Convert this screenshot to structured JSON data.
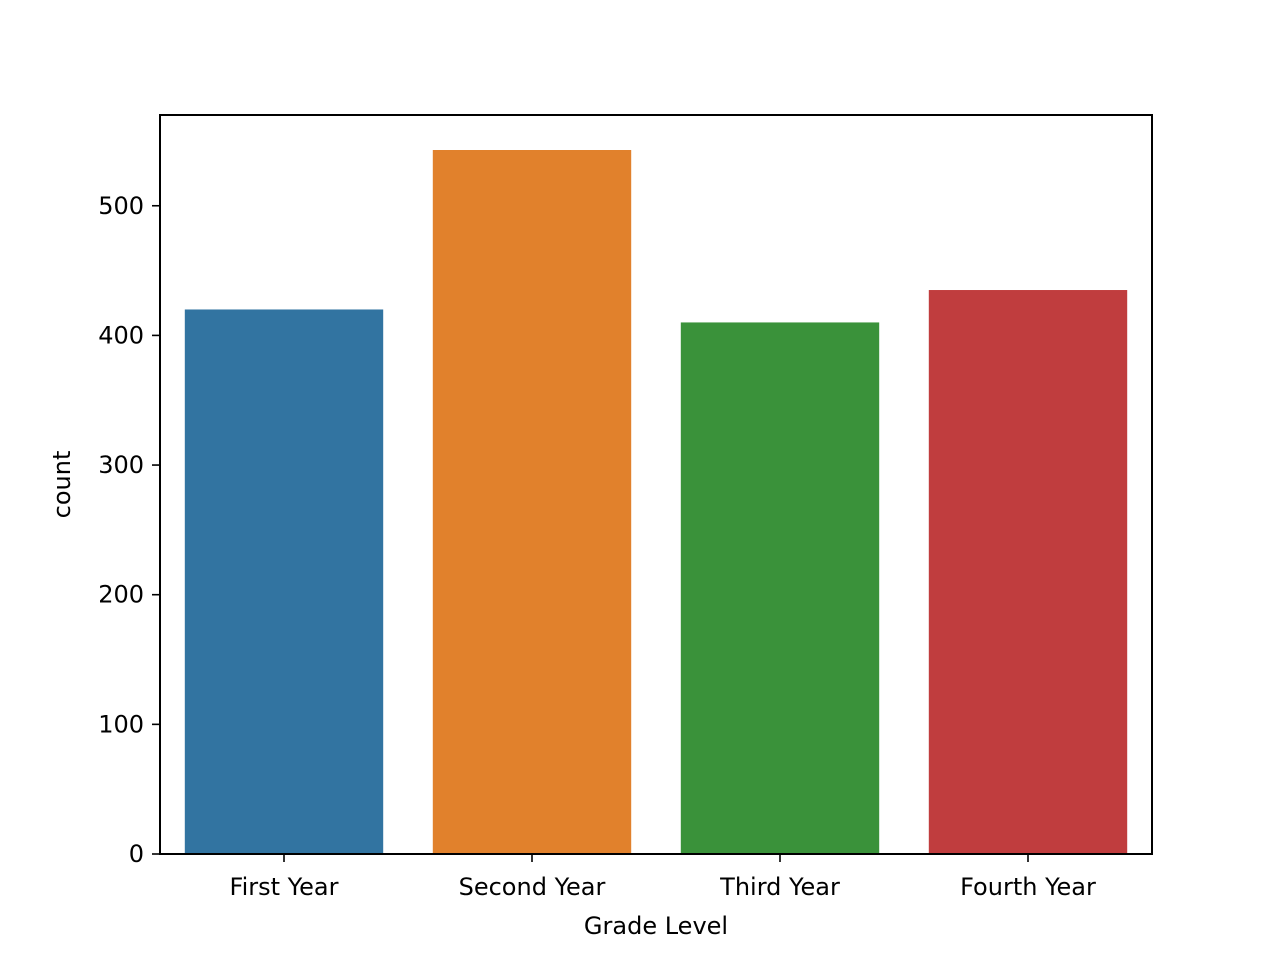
{
  "chart_data": {
    "type": "bar",
    "title": "",
    "xlabel": "Grade Level",
    "ylabel": "count",
    "categories": [
      "First Year",
      "Second Year",
      "Third Year",
      "Fourth Year"
    ],
    "values": [
      420,
      543,
      410,
      435
    ],
    "colors": [
      "#3274a1",
      "#e1812c",
      "#3a923a",
      "#c03d3e"
    ],
    "ylim": [
      0,
      570
    ],
    "yticks": [
      0,
      100,
      200,
      300,
      400,
      500
    ],
    "ytick_labels": [
      "0",
      "100",
      "200",
      "300",
      "400",
      "500"
    ],
    "grid": false,
    "legend": "none"
  }
}
